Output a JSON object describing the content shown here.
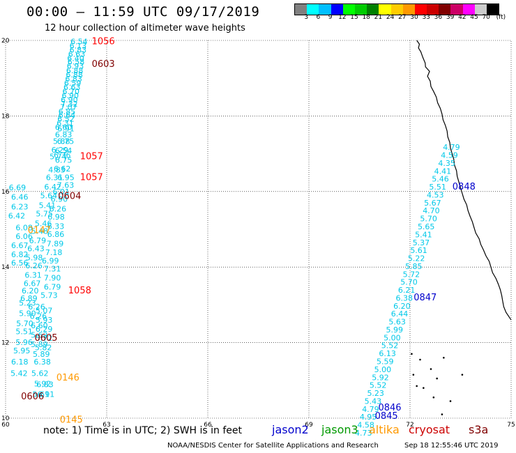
{
  "header": {
    "title": "00:00 – 11:59 UTC 09/17/2019",
    "subtitle": "12 hour collection of altimeter wave heights"
  },
  "color_scale": {
    "colors": [
      "#808080",
      "#00ffff",
      "#00bfff",
      "#0000ff",
      "#00ff00",
      "#00cc00",
      "#008000",
      "#ffff00",
      "#ffcc00",
      "#ff9900",
      "#ff0000",
      "#cc0000",
      "#800000",
      "#cc0066",
      "#ff00ff",
      "#cccccc",
      "#000000"
    ],
    "labels": [
      "3",
      "6",
      "9",
      "12",
      "15",
      "18",
      "21",
      "24",
      "27",
      "30",
      "33",
      "36",
      "39",
      "42",
      "45",
      "70",
      "(ft)"
    ]
  },
  "axes": {
    "lon_labels": [
      "60",
      "63",
      "66",
      "69",
      "72",
      "75"
    ],
    "lat_labels": [
      "20",
      "18",
      "16",
      "14",
      "12",
      "10"
    ]
  },
  "tracks": [
    {
      "satellite": "jason2-a",
      "color": "#00c8e8",
      "points": [
        {
          "lon": 62.18,
          "lat": 19.9,
          "swh": "6.54"
        },
        {
          "lon": 62.15,
          "lat": 19.79,
          "swh": "6.13"
        },
        {
          "lon": 62.15,
          "lat": 19.68,
          "swh": "6.83"
        },
        {
          "lon": 62.11,
          "lat": 19.57,
          "swh": "6.63"
        },
        {
          "lon": 62.08,
          "lat": 19.46,
          "swh": "6.40"
        },
        {
          "lon": 62.09,
          "lat": 19.36,
          "swh": "6.58"
        },
        {
          "lon": 62.07,
          "lat": 19.25,
          "swh": "6.93"
        },
        {
          "lon": 62.05,
          "lat": 19.13,
          "swh": "6.88"
        },
        {
          "lon": 62.04,
          "lat": 19.02,
          "swh": "6.88"
        },
        {
          "lon": 62.02,
          "lat": 18.91,
          "swh": "6.83"
        },
        {
          "lon": 61.99,
          "lat": 18.8,
          "swh": "6.59"
        },
        {
          "lon": 61.97,
          "lat": 18.69,
          "swh": "6.63"
        },
        {
          "lon": 61.94,
          "lat": 18.58,
          "swh": "6.70"
        },
        {
          "lon": 61.92,
          "lat": 18.47,
          "swh": "6.90"
        },
        {
          "lon": 61.89,
          "lat": 18.36,
          "swh": "6.90"
        },
        {
          "lon": 61.89,
          "lat": 18.25,
          "swh": "7.32"
        },
        {
          "lon": 61.87,
          "lat": 18.16,
          "swh": "7.07"
        },
        {
          "lon": 61.82,
          "lat": 18.04,
          "swh": "6.85"
        },
        {
          "lon": 61.82,
          "lat": 17.95,
          "swh": "6.64"
        },
        {
          "lon": 61.79,
          "lat": 17.85,
          "swh": "6.52"
        },
        {
          "lon": 61.77,
          "lat": 17.74,
          "swh": "6.31"
        },
        {
          "lon": 61.72,
          "lat": 17.63,
          "swh": "6.60"
        },
        {
          "lon": 61.79,
          "lat": 17.59,
          "swh": "6.91"
        },
        {
          "lon": 61.72,
          "lat": 17.44,
          "swh": "6.83"
        },
        {
          "lon": 61.66,
          "lat": 17.26,
          "swh": "5.88"
        },
        {
          "lon": 61.78,
          "lat": 17.26,
          "swh": "6.75"
        },
        {
          "lon": 61.61,
          "lat": 17.03,
          "swh": "6.29"
        },
        {
          "lon": 61.72,
          "lat": 17.01,
          "swh": "6.54"
        },
        {
          "lon": 61.56,
          "lat": 16.85,
          "swh": "5.74"
        },
        {
          "lon": 61.68,
          "lat": 16.89,
          "swh": "6.36"
        },
        {
          "lon": 61.72,
          "lat": 16.76,
          "swh": "6.75"
        },
        {
          "lon": 61.68,
          "lat": 16.53,
          "swh": "6.62"
        },
        {
          "lon": 61.52,
          "lat": 16.5,
          "swh": "4.83"
        },
        {
          "lon": 61.79,
          "lat": 16.3,
          "swh": "6.95"
        },
        {
          "lon": 61.45,
          "lat": 16.3,
          "swh": "6.31"
        },
        {
          "lon": 61.78,
          "lat": 16.1,
          "swh": "7.63"
        },
        {
          "lon": 61.4,
          "lat": 16.05,
          "swh": "6.42"
        },
        {
          "lon": 61.65,
          "lat": 15.92,
          "swh": "6.01"
        },
        {
          "lon": 61.28,
          "lat": 15.82,
          "swh": "5.64"
        },
        {
          "lon": 61.59,
          "lat": 15.73,
          "swh": "6.90"
        },
        {
          "lon": 61.24,
          "lat": 15.56,
          "swh": "5.41"
        },
        {
          "lon": 61.55,
          "lat": 15.47,
          "swh": "6.26"
        },
        {
          "lon": 61.15,
          "lat": 15.34,
          "swh": "5.75"
        },
        {
          "lon": 61.5,
          "lat": 15.26,
          "swh": "6.98"
        },
        {
          "lon": 61.12,
          "lat": 15.08,
          "swh": "5.46"
        },
        {
          "lon": 61.49,
          "lat": 15.01,
          "swh": "6.33"
        },
        {
          "lon": 61.01,
          "lat": 14.88,
          "swh": "5.48"
        },
        {
          "lon": 61.49,
          "lat": 14.8,
          "swh": "6.86"
        },
        {
          "lon": 60.95,
          "lat": 14.63,
          "swh": "6.79"
        },
        {
          "lon": 61.47,
          "lat": 14.55,
          "swh": "7.89"
        },
        {
          "lon": 60.9,
          "lat": 14.42,
          "swh": "6.43"
        },
        {
          "lon": 61.43,
          "lat": 14.32,
          "swh": "7.18"
        },
        {
          "lon": 60.85,
          "lat": 14.18,
          "swh": "5.98"
        },
        {
          "lon": 61.33,
          "lat": 14.1,
          "swh": "6.99"
        },
        {
          "lon": 60.84,
          "lat": 13.97,
          "swh": "6.26"
        },
        {
          "lon": 61.39,
          "lat": 13.88,
          "swh": "7.31"
        },
        {
          "lon": 60.82,
          "lat": 13.72,
          "swh": "6.31"
        },
        {
          "lon": 61.39,
          "lat": 13.64,
          "swh": "7.90"
        },
        {
          "lon": 60.79,
          "lat": 13.5,
          "swh": "6.67"
        },
        {
          "lon": 61.39,
          "lat": 13.4,
          "swh": "6.79"
        },
        {
          "lon": 60.73,
          "lat": 13.3,
          "swh": "6.20"
        },
        {
          "lon": 61.29,
          "lat": 13.18,
          "swh": "5.73"
        },
        {
          "lon": 60.69,
          "lat": 13.1,
          "swh": "6.89"
        },
        {
          "lon": 60.65,
          "lat": 12.98,
          "swh": "5.23"
        },
        {
          "lon": 60.92,
          "lat": 12.88,
          "swh": "6.26"
        },
        {
          "lon": 61.14,
          "lat": 12.78,
          "swh": "5.07"
        },
        {
          "lon": 60.65,
          "lat": 12.7,
          "swh": "5.90"
        },
        {
          "lon": 60.97,
          "lat": 12.63,
          "swh": "6.26"
        },
        {
          "lon": 61.14,
          "lat": 12.53,
          "swh": "5.93"
        },
        {
          "lon": 60.57,
          "lat": 12.44,
          "swh": "5.70"
        },
        {
          "lon": 61.0,
          "lat": 12.38,
          "swh": "6.60"
        },
        {
          "lon": 61.14,
          "lat": 12.29,
          "swh": "6.29"
        },
        {
          "lon": 60.55,
          "lat": 12.22,
          "swh": "5.51"
        },
        {
          "lon": 61.0,
          "lat": 12.13,
          "swh": "5.62"
        },
        {
          "lon": 61.14,
          "lat": 12.05,
          "swh": "5.72"
        },
        {
          "lon": 60.55,
          "lat": 11.94,
          "swh": "5.96"
        },
        {
          "lon": 61.0,
          "lat": 11.88,
          "swh": "5.89"
        },
        {
          "lon": 61.12,
          "lat": 11.8,
          "swh": "5.82"
        },
        {
          "lon": 60.48,
          "lat": 11.72,
          "swh": "5.95"
        },
        {
          "lon": 61.06,
          "lat": 11.62,
          "swh": "5.89"
        },
        {
          "lon": 60.42,
          "lat": 11.42,
          "swh": "6.18"
        },
        {
          "lon": 61.09,
          "lat": 11.42,
          "swh": "6.38"
        },
        {
          "lon": 60.4,
          "lat": 11.12,
          "swh": "5.42"
        },
        {
          "lon": 61.02,
          "lat": 11.12,
          "swh": "5.62"
        },
        {
          "lon": 61.1,
          "lat": 10.84,
          "swh": "5.92"
        },
        {
          "lon": 61.17,
          "lat": 10.82,
          "swh": "6.83"
        },
        {
          "lon": 61.05,
          "lat": 10.56,
          "swh": "5.61"
        },
        {
          "lon": 61.2,
          "lat": 10.56,
          "swh": "6.91"
        },
        {
          "lon": 60.55,
          "lat": 14.97,
          "swh": "6.08"
        },
        {
          "lon": 60.55,
          "lat": 14.74,
          "swh": "6.06"
        },
        {
          "lon": 60.42,
          "lat": 14.5,
          "swh": "6.67"
        },
        {
          "lon": 60.42,
          "lat": 14.26,
          "swh": "6.82"
        },
        {
          "lon": 60.42,
          "lat": 14.04,
          "swh": "6.56"
        },
        {
          "lon": 60.33,
          "lat": 15.29,
          "swh": "6.42"
        },
        {
          "lon": 60.42,
          "lat": 15.53,
          "swh": "6.23"
        },
        {
          "lon": 60.42,
          "lat": 15.78,
          "swh": "6.46"
        },
        {
          "lon": 60.35,
          "lat": 16.03,
          "swh": "6.69"
        }
      ]
    },
    {
      "satellite": "jason2-b",
      "color": "#00c8e8",
      "points": [
        {
          "lon": 73.23,
          "lat": 17.1,
          "swh": "4.79"
        },
        {
          "lon": 73.17,
          "lat": 16.89,
          "swh": "4.59"
        },
        {
          "lon": 73.09,
          "lat": 16.68,
          "swh": "4.35"
        },
        {
          "lon": 72.97,
          "lat": 16.47,
          "swh": "4.41"
        },
        {
          "lon": 72.9,
          "lat": 16.26,
          "swh": "5.46"
        },
        {
          "lon": 72.82,
          "lat": 16.05,
          "swh": "5.51"
        },
        {
          "lon": 72.75,
          "lat": 15.84,
          "swh": "4.53"
        },
        {
          "lon": 72.67,
          "lat": 15.63,
          "swh": "5.67"
        },
        {
          "lon": 72.63,
          "lat": 15.42,
          "swh": "4.70"
        },
        {
          "lon": 72.55,
          "lat": 15.21,
          "swh": "5.70"
        },
        {
          "lon": 72.48,
          "lat": 15.0,
          "swh": "5.65"
        },
        {
          "lon": 72.4,
          "lat": 14.79,
          "swh": "5.41"
        },
        {
          "lon": 72.33,
          "lat": 14.58,
          "swh": "5.37"
        },
        {
          "lon": 72.26,
          "lat": 14.37,
          "swh": "5.61"
        },
        {
          "lon": 72.19,
          "lat": 14.16,
          "swh": "5.22"
        },
        {
          "lon": 72.11,
          "lat": 13.95,
          "swh": "5.85"
        },
        {
          "lon": 72.04,
          "lat": 13.74,
          "swh": "5.72"
        },
        {
          "lon": 71.97,
          "lat": 13.53,
          "swh": "5.70"
        },
        {
          "lon": 71.9,
          "lat": 13.32,
          "swh": "6.21"
        },
        {
          "lon": 71.83,
          "lat": 13.11,
          "swh": "6.38"
        },
        {
          "lon": 71.76,
          "lat": 12.9,
          "swh": "6.20"
        },
        {
          "lon": 71.69,
          "lat": 12.69,
          "swh": "6.44"
        },
        {
          "lon": 71.62,
          "lat": 12.48,
          "swh": "5.63"
        },
        {
          "lon": 71.54,
          "lat": 12.27,
          "swh": "5.99"
        },
        {
          "lon": 71.47,
          "lat": 12.06,
          "swh": "5.00"
        },
        {
          "lon": 71.4,
          "lat": 11.85,
          "swh": "5.52"
        },
        {
          "lon": 71.33,
          "lat": 11.64,
          "swh": "6.13"
        },
        {
          "lon": 71.26,
          "lat": 11.43,
          "swh": "5.59"
        },
        {
          "lon": 71.19,
          "lat": 11.22,
          "swh": "5.00"
        },
        {
          "lon": 71.12,
          "lat": 11.01,
          "swh": "5.92"
        },
        {
          "lon": 71.05,
          "lat": 10.8,
          "swh": "5.52"
        },
        {
          "lon": 70.98,
          "lat": 10.59,
          "swh": "5.23"
        },
        {
          "lon": 70.9,
          "lat": 10.38,
          "swh": "5.43"
        },
        {
          "lon": 70.83,
          "lat": 10.17,
          "swh": "4.79"
        },
        {
          "lon": 70.76,
          "lat": 9.96,
          "swh": "4.95"
        },
        {
          "lon": 70.69,
          "lat": 9.75,
          "swh": "4.58"
        },
        {
          "lon": 70.62,
          "lat": 9.54,
          "swh": "4.73"
        }
      ]
    }
  ],
  "pass_labels": [
    {
      "lon": 62.9,
      "lat": 19.9,
      "text": "1056",
      "color": "#ff0000"
    },
    {
      "lon": 62.9,
      "lat": 19.3,
      "text": "0603",
      "color": "#800000"
    },
    {
      "lon": 62.55,
      "lat": 16.85,
      "text": "1057",
      "color": "#ff0000"
    },
    {
      "lon": 62.55,
      "lat": 16.3,
      "text": "1057",
      "color": "#ff0000"
    },
    {
      "lon": 61.9,
      "lat": 15.8,
      "text": "0604",
      "color": "#800000"
    },
    {
      "lon": 61.0,
      "lat": 14.9,
      "text": "0147",
      "color": "#ff9900"
    },
    {
      "lon": 62.2,
      "lat": 13.3,
      "text": "1058",
      "color": "#ff0000"
    },
    {
      "lon": 61.2,
      "lat": 12.05,
      "text": "0605",
      "color": "#800000"
    },
    {
      "lon": 61.85,
      "lat": 11.0,
      "text": "0146",
      "color": "#ff9900"
    },
    {
      "lon": 60.8,
      "lat": 10.5,
      "text": "0606",
      "color": "#800000"
    },
    {
      "lon": 61.95,
      "lat": 9.88,
      "text": "0145",
      "color": "#ff9900"
    },
    {
      "lon": 73.6,
      "lat": 16.05,
      "text": "0848",
      "color": "#0000cc"
    },
    {
      "lon": 72.45,
      "lat": 13.12,
      "text": "0847",
      "color": "#0000cc"
    },
    {
      "lon": 71.4,
      "lat": 10.2,
      "text": "0846",
      "color": "#0000cc"
    },
    {
      "lon": 71.3,
      "lat": 9.98,
      "text": "0845",
      "color": "#0000cc"
    }
  ],
  "footer": {
    "note": "note:  1) Time is in UTC;  2) SWH is in feet",
    "legend": [
      {
        "label": "jason2",
        "color": "#0000cc"
      },
      {
        "label": "jason3",
        "color": "#009900"
      },
      {
        "label": "altika",
        "color": "#ff9900"
      },
      {
        "label": "cryosat",
        "color": "#cc0000"
      },
      {
        "label": "s3a",
        "color": "#800000"
      }
    ],
    "credit_left": "NOAA/NESDIS Center for Satellite Applications and Research",
    "credit_right": "Sep 18 12:55:46 UTC 2019"
  }
}
